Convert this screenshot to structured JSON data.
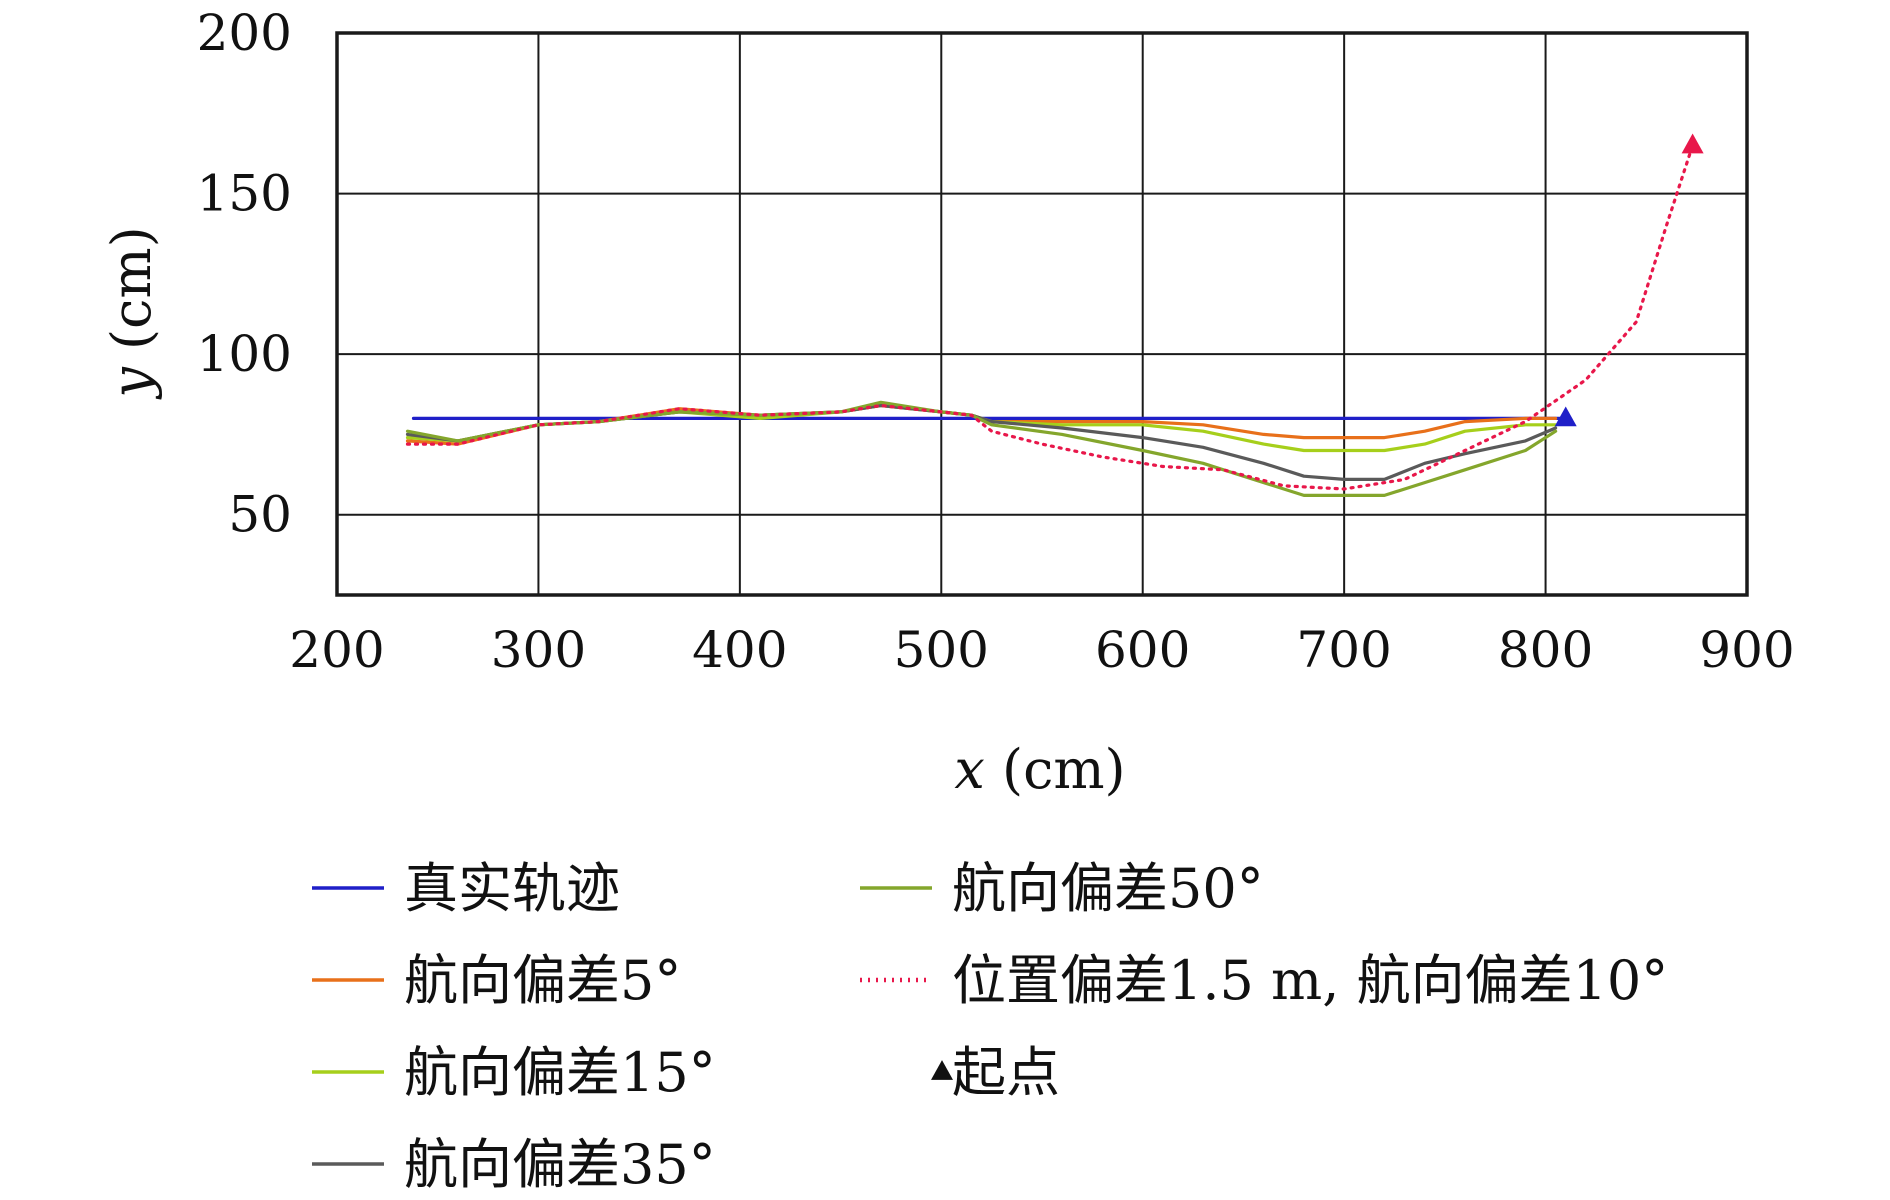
{
  "chart_data": {
    "type": "line",
    "xlabel": "x (cm)",
    "ylabel": "y (cm)",
    "xlim": [
      200,
      900
    ],
    "ylim": [
      25,
      200
    ],
    "xticks": [
      200,
      300,
      400,
      500,
      600,
      700,
      800,
      900
    ],
    "yticks": [
      50,
      100,
      150,
      200
    ],
    "grid": true,
    "legend_position": "bottom, two columns",
    "series": [
      {
        "name": "真实轨迹",
        "color": "#1f1fc8",
        "style": "solid",
        "x": [
          238,
          810
        ],
        "y": [
          80,
          80
        ]
      },
      {
        "name": "航向偏差5°",
        "color": "#e8701a",
        "style": "solid",
        "x": [
          235,
          260,
          300,
          330,
          370,
          410,
          450,
          470,
          500,
          515,
          525,
          560,
          600,
          630,
          660,
          680,
          700,
          720,
          740,
          760,
          790,
          805
        ],
        "y": [
          73,
          72,
          78,
          79,
          83,
          81,
          82,
          84,
          82,
          81,
          79,
          79,
          79,
          78,
          75,
          74,
          74,
          74,
          76,
          79,
          80,
          80
        ]
      },
      {
        "name": "航向偏差15°",
        "color": "#a6cf1b",
        "style": "solid",
        "x": [
          235,
          260,
          300,
          330,
          370,
          410,
          450,
          470,
          500,
          515,
          525,
          560,
          600,
          630,
          660,
          680,
          700,
          720,
          740,
          760,
          790,
          805
        ],
        "y": [
          74,
          73,
          78,
          79,
          82,
          80,
          82,
          84,
          82,
          81,
          79,
          78,
          78,
          76,
          72,
          70,
          70,
          70,
          72,
          76,
          78,
          78
        ]
      },
      {
        "name": "航向偏差35°",
        "color": "#5a5a5a",
        "style": "solid",
        "x": [
          235,
          260,
          300,
          330,
          370,
          410,
          450,
          470,
          500,
          515,
          525,
          560,
          600,
          630,
          660,
          680,
          700,
          720,
          740,
          760,
          790,
          805
        ],
        "y": [
          75,
          73,
          78,
          79,
          82,
          81,
          82,
          84,
          82,
          81,
          79,
          77,
          74,
          71,
          66,
          62,
          61,
          61,
          66,
          69,
          73,
          77
        ]
      },
      {
        "name": "航向偏差50°",
        "color": "#84a62c",
        "style": "solid",
        "x": [
          235,
          260,
          300,
          330,
          370,
          410,
          450,
          470,
          500,
          515,
          525,
          560,
          600,
          630,
          660,
          680,
          700,
          720,
          740,
          760,
          790,
          805
        ],
        "y": [
          76,
          73,
          78,
          79,
          82,
          81,
          82,
          85,
          82,
          81,
          78,
          75,
          70,
          66,
          60,
          56,
          56,
          56,
          60,
          64,
          70,
          76
        ]
      },
      {
        "name": "位置偏差1.5 m, 航向偏差10°",
        "color": "#e8174a",
        "style": "dotted",
        "x": [
          235,
          260,
          300,
          330,
          370,
          410,
          450,
          470,
          500,
          515,
          525,
          550,
          580,
          610,
          640,
          670,
          700,
          730,
          760,
          790,
          820,
          845,
          860,
          873
        ],
        "y": [
          72,
          72,
          78,
          79,
          83,
          81,
          82,
          84,
          82,
          81,
          76,
          72,
          68,
          65,
          64,
          59,
          58,
          61,
          70,
          79,
          92,
          110,
          140,
          165
        ]
      }
    ],
    "start_markers": [
      {
        "x": 810,
        "y": 80,
        "color": "#1f1fc8"
      },
      {
        "x": 873,
        "y": 165,
        "color": "#e8174a"
      }
    ],
    "start_legend": {
      "name": "起点",
      "color": "#111111"
    }
  }
}
